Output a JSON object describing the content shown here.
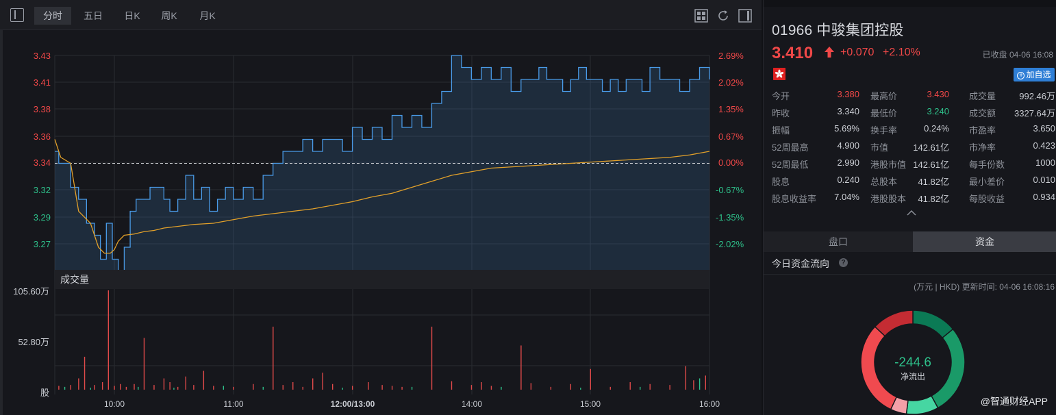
{
  "toolbar": {
    "tabs": [
      "分时",
      "五日",
      "日K",
      "周K",
      "月K"
    ],
    "active_tab": "分时",
    "icons": [
      "panel-toggle-icon",
      "grid-layout-icon",
      "refresh-icon",
      "sidebar-toggle-icon"
    ]
  },
  "chart_data": [
    {
      "type": "line",
      "title": "",
      "x_ticks": [
        "10:00",
        "11:00",
        "12:00/13:00",
        "14:00",
        "15:00",
        "16:00"
      ],
      "y_left_ticks": [
        "3.43",
        "3.41",
        "3.38",
        "3.36",
        "3.34",
        "3.32",
        "3.29",
        "3.27"
      ],
      "y_right_ticks": [
        "2.69%",
        "2.02%",
        "1.35%",
        "0.67%",
        "0.00%",
        "-0.67%",
        "-1.35%",
        "-2.02%"
      ],
      "ylim": [
        3.25,
        3.43
      ],
      "prev_close": 3.34,
      "series": [
        {
          "name": "",
          "color": "#4a9be8",
          "x": [
            0,
            2,
            4,
            8,
            12,
            16,
            20,
            23,
            26,
            29,
            32,
            35,
            38,
            41,
            44,
            48,
            52,
            55,
            58,
            62,
            66,
            70,
            74,
            78,
            82,
            86,
            90,
            95,
            100,
            105,
            110,
            115,
            120,
            125,
            130,
            135,
            140,
            145,
            150,
            155,
            160,
            165,
            170,
            175,
            180,
            185,
            190,
            195,
            200,
            205,
            210,
            215,
            220,
            225,
            230,
            235,
            240,
            244,
            248,
            252,
            256,
            260,
            264,
            268,
            272,
            276,
            280,
            284,
            288,
            292,
            296,
            300,
            305,
            310,
            315,
            320,
            325,
            330
          ],
          "y": [
            3.35,
            3.34,
            3.34,
            3.32,
            3.31,
            3.29,
            3.28,
            3.26,
            3.29,
            3.26,
            3.25,
            3.27,
            3.3,
            3.31,
            3.31,
            3.32,
            3.32,
            3.31,
            3.3,
            3.31,
            3.33,
            3.31,
            3.32,
            3.3,
            3.31,
            3.32,
            3.31,
            3.32,
            3.31,
            3.33,
            3.34,
            3.35,
            3.35,
            3.36,
            3.35,
            3.36,
            3.36,
            3.35,
            3.37,
            3.36,
            3.37,
            3.36,
            3.38,
            3.37,
            3.38,
            3.37,
            3.39,
            3.4,
            3.43,
            3.42,
            3.41,
            3.42,
            3.41,
            3.42,
            3.4,
            3.41,
            3.41,
            3.42,
            3.41,
            3.41,
            3.4,
            3.41,
            3.42,
            3.41,
            3.41,
            3.4,
            3.41,
            3.4,
            3.41,
            3.41,
            3.4,
            3.42,
            3.41,
            3.41,
            3.4,
            3.41,
            3.42,
            3.41
          ]
        },
        {
          "name": "",
          "color": "#e3a12a",
          "x": [
            0,
            3,
            8,
            12,
            18,
            22,
            25,
            28,
            30,
            32,
            35,
            40,
            45,
            50,
            55,
            60,
            70,
            80,
            90,
            100,
            110,
            120,
            130,
            140,
            150,
            160,
            170,
            180,
            190,
            200,
            210,
            220,
            230,
            240,
            250,
            260,
            270,
            280,
            290,
            300,
            310,
            320,
            330
          ],
          "y": [
            3.36,
            3.345,
            3.34,
            3.3,
            3.29,
            3.27,
            3.265,
            3.265,
            3.268,
            3.275,
            3.28,
            3.281,
            3.283,
            3.284,
            3.286,
            3.287,
            3.289,
            3.29,
            3.293,
            3.296,
            3.298,
            3.3,
            3.302,
            3.305,
            3.308,
            3.312,
            3.315,
            3.32,
            3.325,
            3.33,
            3.333,
            3.336,
            3.337,
            3.338,
            3.339,
            3.34,
            3.341,
            3.342,
            3.343,
            3.344,
            3.345,
            3.347,
            3.35
          ]
        }
      ]
    },
    {
      "type": "bar",
      "title": "成交量",
      "y_ticks": [
        "105.60万",
        "52.80万",
        "股"
      ],
      "ylim": [
        0,
        105.6
      ],
      "bars_red": {
        "x": [
          2,
          8,
          12,
          15,
          20,
          24,
          27,
          30,
          33,
          36,
          40,
          45,
          50,
          55,
          58,
          62,
          66,
          70,
          75,
          80,
          90,
          100,
          110,
          115,
          120,
          125,
          130,
          135,
          140,
          150,
          158,
          165,
          170,
          175,
          190,
          200,
          210,
          215,
          220,
          235,
          240,
          250,
          260,
          270,
          280,
          290,
          300,
          310,
          318,
          322,
          328
        ],
        "values": [
          4,
          5,
          12,
          35,
          5,
          8,
          105.6,
          4,
          6,
          3,
          6,
          55,
          5,
          12,
          8,
          3,
          14,
          5,
          20,
          4,
          3,
          6,
          67,
          5,
          8,
          3,
          12,
          18,
          6,
          4,
          8,
          5,
          4,
          3,
          67,
          9,
          5,
          8,
          4,
          47,
          7,
          3,
          6,
          22,
          3,
          8,
          6,
          5,
          25,
          10,
          15
        ]
      },
      "bars_green": {
        "x": [
          5,
          18,
          42,
          60,
          85,
          105,
          145,
          180,
          225,
          265,
          295,
          325
        ],
        "values": [
          3,
          2,
          3,
          2,
          4,
          3,
          2,
          3,
          3,
          2,
          3,
          12
        ]
      }
    },
    {
      "type": "pie",
      "title": "",
      "center_value": "-244.6",
      "center_label": "净流出",
      "slices": [
        {
          "label": "",
          "value": 14,
          "color": "#0b7a55"
        },
        {
          "label": "",
          "value": 28,
          "color": "#1a9a68"
        },
        {
          "label": "",
          "value": 10,
          "color": "#46d6a2"
        },
        {
          "label": "",
          "value": 5,
          "color": "#f3a0a8"
        },
        {
          "label": "",
          "value": 30,
          "color": "#f04a4f"
        },
        {
          "label": "",
          "value": 13,
          "color": "#c42c33"
        }
      ]
    }
  ],
  "stock": {
    "title": "01966 中骏集团控股",
    "price": "3.410",
    "change": "+0.070",
    "change_pct": "+2.10%",
    "status": "已收盘 04-06 16:08",
    "add_watch": "加自选",
    "colors": {
      "up": "#f04848",
      "down": "#2ec08a",
      "accent": "#2f7fd6"
    }
  },
  "stats": [
    [
      {
        "label": "今开",
        "value": "3.380",
        "tone": "red"
      },
      {
        "label": "最高价",
        "value": "3.430",
        "tone": "red"
      },
      {
        "label": "成交量",
        "value": "992.46万",
        "tone": ""
      }
    ],
    [
      {
        "label": "昨收",
        "value": "3.340",
        "tone": ""
      },
      {
        "label": "最低价",
        "value": "3.240",
        "tone": "green"
      },
      {
        "label": "成交额",
        "value": "3327.64万",
        "tone": ""
      }
    ],
    [
      {
        "label": "振幅",
        "value": "5.69%",
        "tone": ""
      },
      {
        "label": "换手率",
        "value": "0.24%",
        "tone": ""
      },
      {
        "label": "市盈率",
        "value": "3.650",
        "tone": ""
      }
    ],
    [
      {
        "label": "52周最高",
        "value": "4.900",
        "tone": ""
      },
      {
        "label": "市值",
        "value": "142.61亿",
        "tone": ""
      },
      {
        "label": "市净率",
        "value": "0.423",
        "tone": ""
      }
    ],
    [
      {
        "label": "52周最低",
        "value": "2.990",
        "tone": ""
      },
      {
        "label": "港股市值",
        "value": "142.61亿",
        "tone": ""
      },
      {
        "label": "每手份数",
        "value": "1000",
        "tone": ""
      }
    ],
    [
      {
        "label": "股息",
        "value": "0.240",
        "tone": ""
      },
      {
        "label": "总股本",
        "value": "41.82亿",
        "tone": ""
      },
      {
        "label": "最小差价",
        "value": "0.010",
        "tone": ""
      }
    ],
    [
      {
        "label": "股息收益率",
        "value": "7.04%",
        "tone": ""
      },
      {
        "label": "港股股本",
        "value": "41.82亿",
        "tone": ""
      },
      {
        "label": "每股收益",
        "value": "0.934",
        "tone": ""
      }
    ]
  ],
  "panel_tabs": {
    "pankou": "盘口",
    "zijin": "资金",
    "active": "资金"
  },
  "flow": {
    "title": "今日资金流向",
    "help": "?",
    "update_time": "(万元 | HKD) 更新时间: 04-06 16:08:16"
  },
  "watermark": "@智通财经APP"
}
